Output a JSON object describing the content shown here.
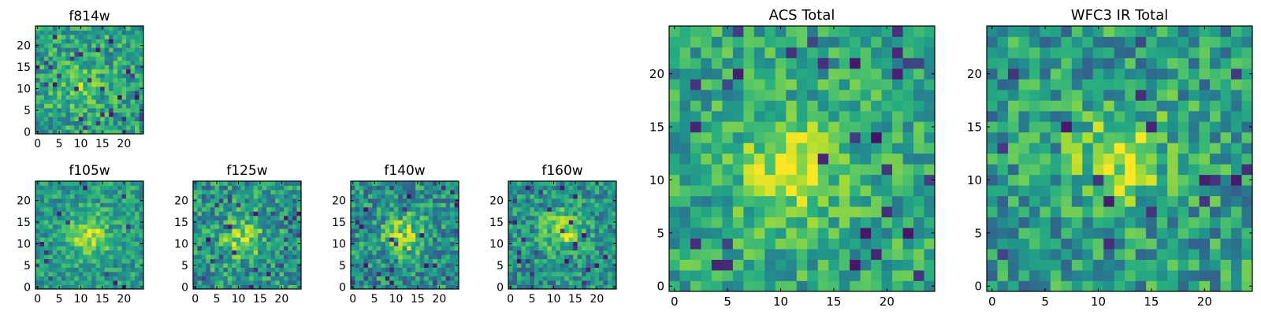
{
  "figure": {
    "description_colormap": "viridis",
    "colors": {
      "background": "#ffffff",
      "frame": "#000000",
      "text": "#000000"
    }
  },
  "chart_data": [
    {
      "id": "f814w",
      "type": "heatmap",
      "title": "f814w",
      "xlabel": "",
      "ylabel": "",
      "xlim": [
        -0.5,
        24.5
      ],
      "ylim": [
        -0.5,
        24.5
      ],
      "xticks": [
        0,
        5,
        10,
        15,
        20
      ],
      "yticks": [
        0,
        5,
        10,
        15,
        20
      ],
      "xtick_labels": [
        "0",
        "5",
        "10",
        "15",
        "20"
      ],
      "ytick_labels": [
        "0",
        "5",
        "10",
        "15",
        "20"
      ],
      "grid_size": 25,
      "colormap": "viridis",
      "source_center": [
        10,
        11
      ],
      "peak_value": 0.78,
      "background_level": 0.58,
      "noise_amplitude": 0.22,
      "dark_pixel_fraction": 0.06
    },
    {
      "id": "f105w",
      "type": "heatmap",
      "title": "f105w",
      "xlabel": "",
      "ylabel": "",
      "xlim": [
        -0.5,
        24.5
      ],
      "ylim": [
        -0.5,
        24.5
      ],
      "xticks": [
        0,
        5,
        10,
        15,
        20
      ],
      "yticks": [
        0,
        5,
        10,
        15,
        20
      ],
      "xtick_labels": [
        "0",
        "5",
        "10",
        "15",
        "20"
      ],
      "ytick_labels": [
        "0",
        "5",
        "10",
        "15",
        "20"
      ],
      "grid_size": 25,
      "colormap": "viridis",
      "source_center": [
        12,
        12
      ],
      "peak_value": 0.92,
      "background_level": 0.55,
      "noise_amplitude": 0.18,
      "dark_pixel_fraction": 0.02
    },
    {
      "id": "f125w",
      "type": "heatmap",
      "title": "f125w",
      "xlabel": "",
      "ylabel": "",
      "xlim": [
        -0.5,
        24.5
      ],
      "ylim": [
        -0.5,
        24.5
      ],
      "xticks": [
        0,
        5,
        10,
        15,
        20
      ],
      "yticks": [
        0,
        5,
        10,
        15,
        20
      ],
      "xtick_labels": [
        "0",
        "5",
        "10",
        "15",
        "20"
      ],
      "ytick_labels": [
        "0",
        "5",
        "10",
        "15",
        "20"
      ],
      "grid_size": 25,
      "colormap": "viridis",
      "source_center": [
        11,
        11
      ],
      "peak_value": 0.85,
      "background_level": 0.52,
      "noise_amplitude": 0.24,
      "dark_pixel_fraction": 0.04
    },
    {
      "id": "f140w",
      "type": "heatmap",
      "title": "f140w",
      "xlabel": "",
      "ylabel": "",
      "xlim": [
        -0.5,
        24.5
      ],
      "ylim": [
        -0.5,
        24.5
      ],
      "xticks": [
        0,
        5,
        10,
        15,
        20
      ],
      "yticks": [
        0,
        5,
        10,
        15,
        20
      ],
      "xtick_labels": [
        "0",
        "5",
        "10",
        "15",
        "20"
      ],
      "ytick_labels": [
        "0",
        "5",
        "10",
        "15",
        "20"
      ],
      "grid_size": 25,
      "colormap": "viridis",
      "source_center": [
        12,
        12
      ],
      "peak_value": 0.84,
      "background_level": 0.5,
      "noise_amplitude": 0.24,
      "dark_pixel_fraction": 0.04
    },
    {
      "id": "f160w",
      "type": "heatmap",
      "title": "f160w",
      "xlabel": "",
      "ylabel": "",
      "xlim": [
        -0.5,
        24.5
      ],
      "ylim": [
        -0.5,
        24.5
      ],
      "xticks": [
        0,
        5,
        10,
        15,
        20
      ],
      "yticks": [
        0,
        5,
        10,
        15,
        20
      ],
      "xtick_labels": [
        "0",
        "5",
        "10",
        "15",
        "20"
      ],
      "ytick_labels": [
        "0",
        "5",
        "10",
        "15",
        "20"
      ],
      "grid_size": 25,
      "colormap": "viridis",
      "source_center": [
        12,
        13
      ],
      "peak_value": 0.86,
      "background_level": 0.5,
      "noise_amplitude": 0.22,
      "dark_pixel_fraction": 0.03
    },
    {
      "id": "acs-total",
      "type": "heatmap",
      "title": "ACS Total",
      "xlabel": "",
      "ylabel": "",
      "xlim": [
        -0.5,
        24.5
      ],
      "ylim": [
        -0.5,
        24.5
      ],
      "xticks": [
        0,
        5,
        10,
        15,
        20
      ],
      "yticks": [
        0,
        5,
        10,
        15,
        20
      ],
      "xtick_labels": [
        "0",
        "5",
        "10",
        "15",
        "20"
      ],
      "ytick_labels": [
        "0",
        "5",
        "10",
        "15",
        "20"
      ],
      "grid_size": 25,
      "colormap": "viridis",
      "source_center": [
        11,
        11
      ],
      "peak_value": 0.95,
      "background_level": 0.6,
      "noise_amplitude": 0.2,
      "dark_pixel_fraction": 0.04
    },
    {
      "id": "wfc3-ir-total",
      "type": "heatmap",
      "title": "WFC3 IR Total",
      "xlabel": "",
      "ylabel": "",
      "xlim": [
        -0.5,
        24.5
      ],
      "ylim": [
        -0.5,
        24.5
      ],
      "xticks": [
        0,
        5,
        10,
        15,
        20
      ],
      "yticks": [
        0,
        5,
        10,
        15,
        20
      ],
      "xtick_labels": [
        "0",
        "5",
        "10",
        "15",
        "20"
      ],
      "ytick_labels": [
        "0",
        "5",
        "10",
        "15",
        "20"
      ],
      "grid_size": 25,
      "colormap": "viridis",
      "source_center": [
        12,
        12
      ],
      "peak_value": 0.88,
      "background_level": 0.55,
      "noise_amplitude": 0.24,
      "dark_pixel_fraction": 0.04
    }
  ]
}
